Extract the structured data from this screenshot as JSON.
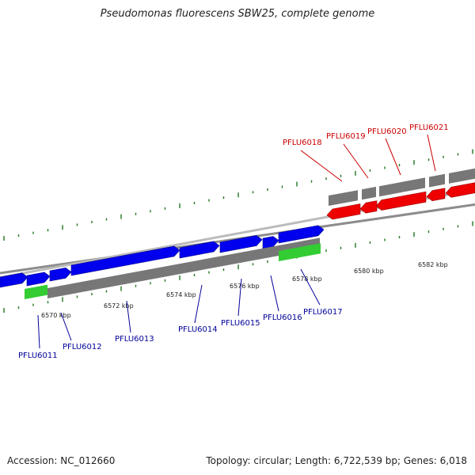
{
  "title": "Pseudomonas fluorescens SBW25, complete genome",
  "accession": "Accession: NC_012660",
  "summary": "Topology: circular; Length: 6,722,539 bp; Genes: 6,018",
  "colors": {
    "forward_gene": "#0000ee",
    "reverse_gene": "#ee0000",
    "rna_gene": "#33cc33",
    "cds_segment": "#777777",
    "backbone": "#8c8c8c",
    "tick": "#227722",
    "label_forward": "#000099",
    "label_reverse": "#cc0000"
  },
  "scale_labels": [
    "6570 kbp",
    "6572 kbp",
    "6574 kbp",
    "6576 kbp",
    "6578 kbp",
    "6580 kbp",
    "6582 kbp"
  ],
  "genes_lower": [
    "PFLU6011",
    "PFLU6012",
    "PFLU6013",
    "PFLU6014",
    "PFLU6015",
    "PFLU6016",
    "PFLU6017"
  ],
  "genes_upper": [
    "PFLU6018",
    "PFLU6019",
    "PFLU6020",
    "PFLU6021"
  ]
}
